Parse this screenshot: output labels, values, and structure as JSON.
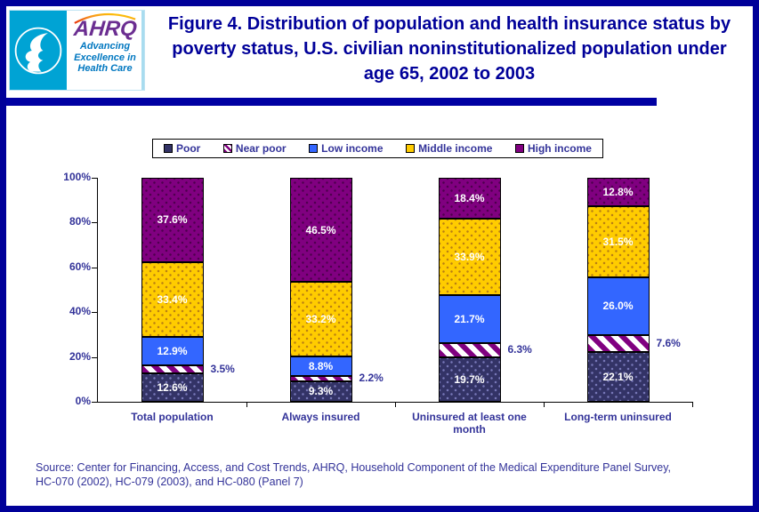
{
  "header": {
    "logo": {
      "hhs_seal": "hhs-eagle-seal",
      "acronym": "AHRQ",
      "tagline_lines": [
        "Advancing",
        "Excellence in",
        "Health Care"
      ]
    },
    "title": "Figure 4. Distribution of population and health insurance status by poverty status, U.S. civilian noninstitutionalized population under age 65, 2002 to 2003"
  },
  "chart_data": {
    "type": "bar",
    "stacked": true,
    "orientation": "vertical",
    "categories": [
      "Total population",
      "Always insured",
      "Uninsured at least one month",
      "Long-term uninsured"
    ],
    "series": [
      {
        "name": "Poor",
        "values": [
          12.6,
          9.3,
          19.7,
          22.1
        ],
        "color": "#333366",
        "pattern": "dots",
        "dot_color": "#7878B8",
        "label_style": "inside-white"
      },
      {
        "name": "Near poor",
        "values": [
          3.5,
          2.2,
          6.3,
          7.6
        ],
        "color": "#800080",
        "pattern": "diagonal-stripes",
        "stripe_bg": "#FFFFFF",
        "label_style": "outside-right"
      },
      {
        "name": "Low income",
        "values": [
          12.9,
          8.8,
          21.7,
          26.0
        ],
        "color": "#3366FF",
        "pattern": "solid",
        "label_style": "inside-white"
      },
      {
        "name": "Middle income",
        "values": [
          33.4,
          33.2,
          33.9,
          31.5
        ],
        "color": "#FFCC00",
        "pattern": "dots",
        "dot_color": "#B97E14",
        "label_style": "inside-white"
      },
      {
        "name": "High income",
        "values": [
          37.6,
          46.5,
          18.4,
          12.8
        ],
        "color": "#800080",
        "pattern": "dots",
        "dot_color": "#4D004D",
        "label_style": "inside-white"
      }
    ],
    "y_axis": {
      "ticks": [
        "0%",
        "20%",
        "40%",
        "60%",
        "80%",
        "100%"
      ],
      "min": 0,
      "max": 100,
      "grid": false
    },
    "legend": {
      "position": "top",
      "entries": [
        "Poor",
        "Near poor",
        "Low income",
        "Middle income",
        "High income"
      ]
    },
    "value_label_format": "{value}%"
  },
  "footer": {
    "source_lines": [
      "Source: Center for Financing, Access, and Cost Trends, AHRQ, Household Component of the Medical Expenditure Panel Survey,",
      "HC-070 (2002), HC-079 (2003), and HC-080 (Panel 7)"
    ]
  },
  "colors": {
    "frame_border": "#000099",
    "title_text": "#000099",
    "divider": "#0000A2",
    "axis_text": "#333399",
    "bar_label_inside": "#FFFFFF",
    "hhs_panel": "#00A3D4",
    "ahrq_acronym": "#6B2E91",
    "ahrq_tagline": "#0077C0"
  }
}
